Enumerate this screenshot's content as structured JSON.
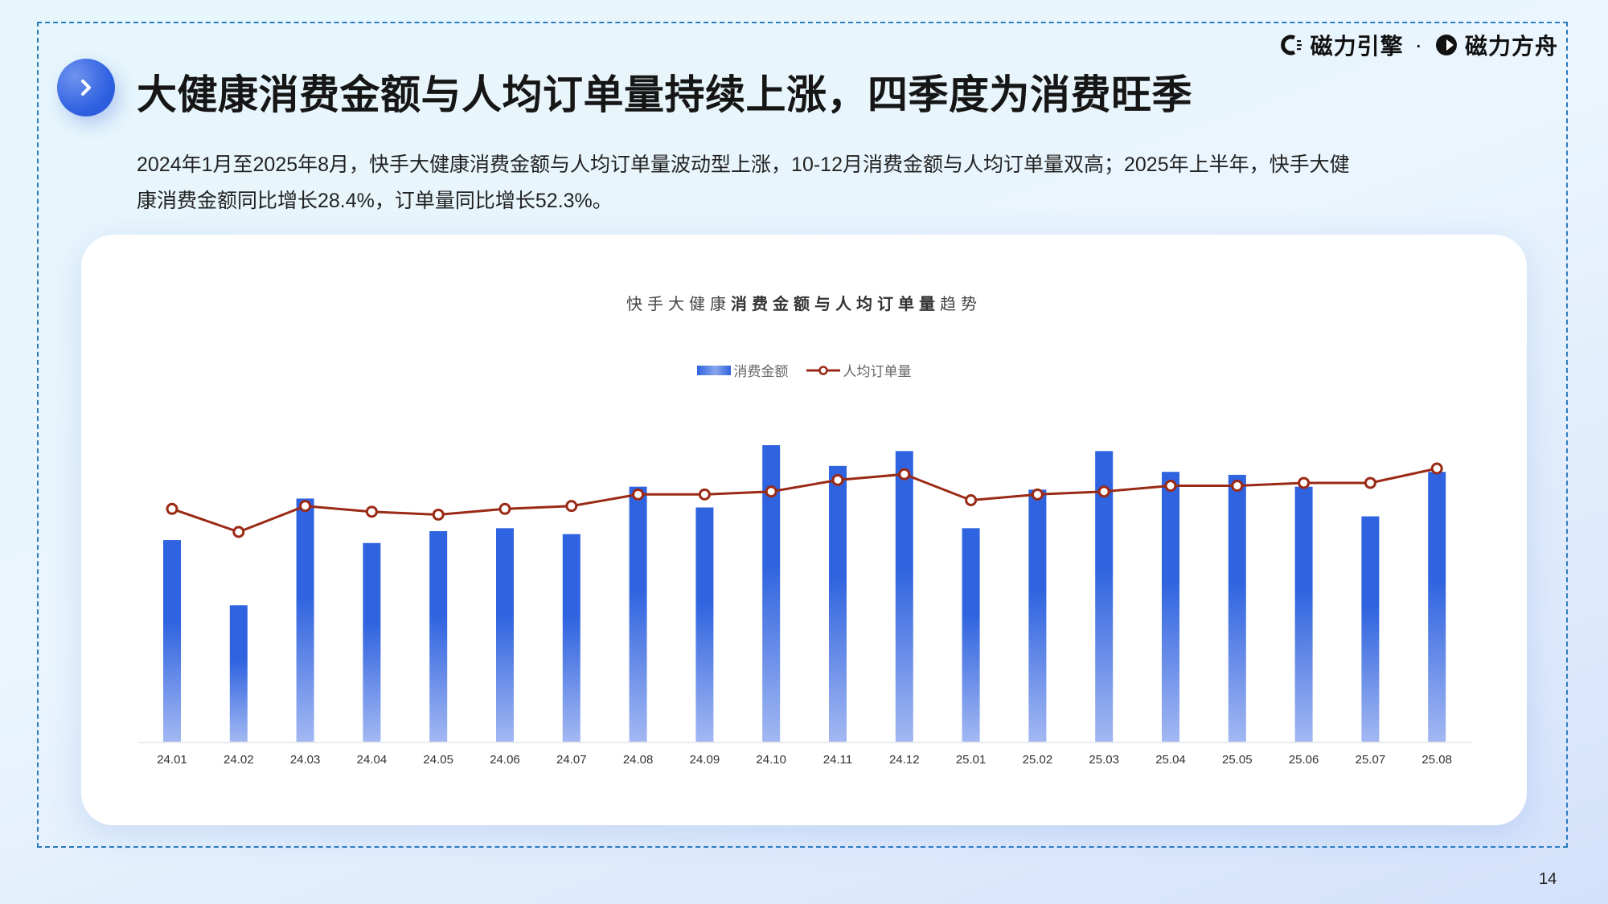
{
  "brand": {
    "logo1_text": "磁力引擎",
    "separator": "·",
    "logo2_text": "磁力方舟"
  },
  "header": {
    "title": "大健康消费金额与人均订单量持续上涨，四季度为消费旺季",
    "description_line1": "2024年1月至2025年8月，快手大健康消费金额与人均订单量波动型上涨，10-12月消费金额与人均订单量双高；2025年上半年，快手大健",
    "description_line2": "康消费金额同比增长28.4%，订单量同比增长52.3%。"
  },
  "chart_card": {
    "title_light_prefix": "快手大健康",
    "title_bold": "消费金额与人均订单量",
    "title_light_suffix": "趋势",
    "legend": [
      {
        "label": "消费金额",
        "type": "bar"
      },
      {
        "label": "人均订单量",
        "type": "line"
      }
    ]
  },
  "page_number": "14",
  "colors": {
    "bar_top": "#2f63df",
    "bar_bottom": "#a3b8f2",
    "line": "#9a2a16",
    "accent": "#2d5fe0",
    "frame": "#2a7bc0"
  },
  "chart_data": {
    "type": "bar",
    "title": "快手大健康消费金额与人均订单量趋势",
    "xlabel": "",
    "ylabel": "",
    "grid": false,
    "legend_position": "top",
    "categories": [
      "24.01",
      "24.02",
      "24.03",
      "24.04",
      "24.05",
      "24.06",
      "24.07",
      "24.08",
      "24.09",
      "24.10",
      "24.11",
      "24.12",
      "25.01",
      "25.02",
      "25.03",
      "25.04",
      "25.05",
      "25.06",
      "25.07",
      "25.08"
    ],
    "series": [
      {
        "name": "消费金额",
        "type": "bar",
        "axis": "left",
        "note": "no axis labels shown; values are relative index (max=100)",
        "values": [
          68,
          46,
          82,
          67,
          71,
          72,
          70,
          86,
          79,
          100,
          93,
          98,
          72,
          85,
          98,
          91,
          90,
          86,
          76,
          91
        ]
      },
      {
        "name": "人均订单量",
        "type": "line",
        "axis": "right",
        "note": "no axis labels shown; values are relative index (max=100)",
        "values": [
          86,
          78,
          87,
          85,
          84,
          86,
          87,
          91,
          91,
          92,
          96,
          98,
          89,
          91,
          92,
          94,
          94,
          95,
          95,
          100
        ]
      }
    ]
  }
}
